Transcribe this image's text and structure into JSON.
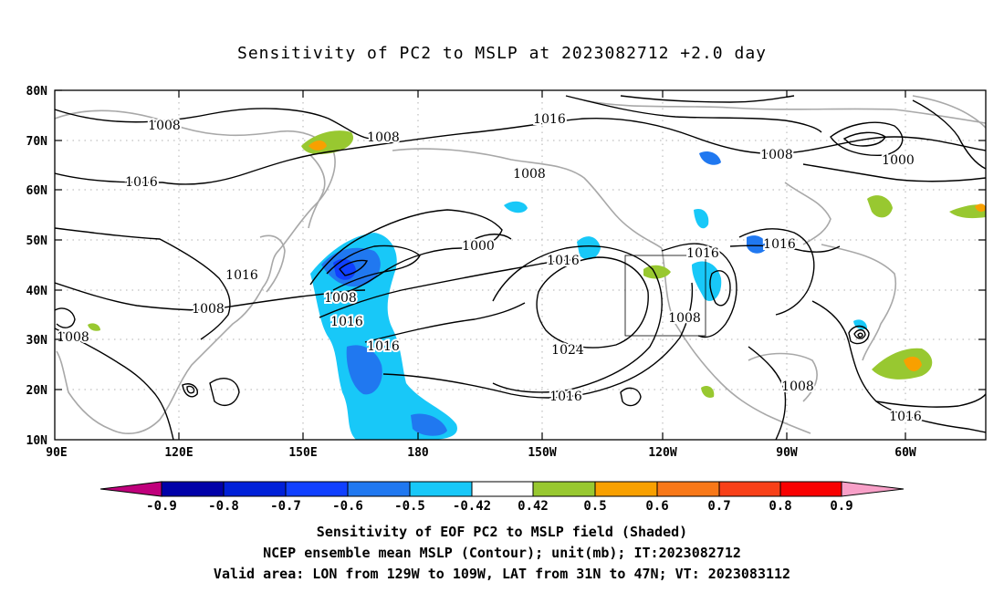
{
  "title": "Sensitivity of PC2 to MSLP at 2023082712 +2.0 day",
  "lat_labels": [
    "80N",
    "70N",
    "60N",
    "50N",
    "40N",
    "30N",
    "20N",
    "10N"
  ],
  "lon_labels": [
    "90E",
    "120E",
    "150E",
    "180",
    "150W",
    "120W",
    "90W",
    "60W"
  ],
  "colorbar": {
    "labels": [
      "-0.9",
      "-0.8",
      "-0.7",
      "-0.6",
      "-0.5",
      "-0.42",
      "0.42",
      "0.5",
      "0.6",
      "0.7",
      "0.8",
      "0.9"
    ],
    "colors": [
      "#c0007c",
      "#0000a8",
      "#0020d8",
      "#1040ff",
      "#2078f0",
      "#30a8f8",
      "#18c8f8",
      "#ffffff",
      "#98c830",
      "#f8a000",
      "#f87818",
      "#f84018",
      "#f80000",
      "#f8a0c8"
    ]
  },
  "contour_labels": [
    {
      "id": "c1",
      "text": "1008"
    },
    {
      "id": "c2",
      "text": "1008"
    },
    {
      "id": "c3",
      "text": "1016"
    },
    {
      "id": "c4",
      "text": "1016"
    },
    {
      "id": "c5",
      "text": "1008"
    },
    {
      "id": "c6",
      "text": "1008"
    },
    {
      "id": "c7",
      "text": "1016"
    },
    {
      "id": "c8",
      "text": "1016"
    },
    {
      "id": "c9",
      "text": "1008"
    },
    {
      "id": "c10",
      "text": "1000"
    },
    {
      "id": "c11",
      "text": "1016"
    },
    {
      "id": "c12",
      "text": "1024"
    },
    {
      "id": "c13",
      "text": "1016"
    },
    {
      "id": "c14",
      "text": "1016"
    },
    {
      "id": "c15",
      "text": "1008"
    },
    {
      "id": "c16",
      "text": "1008"
    },
    {
      "id": "c17",
      "text": "1016"
    },
    {
      "id": "c18",
      "text": "1008"
    },
    {
      "id": "c19",
      "text": "1000"
    },
    {
      "id": "c20",
      "text": "1016"
    },
    {
      "id": "c21",
      "text": "1016"
    },
    {
      "id": "c22",
      "text": "1008"
    }
  ],
  "captions": {
    "line1": "Sensitivity of EOF PC2 to MSLP field (Shaded)",
    "line2": "NCEP ensemble mean MSLP (Contour); unit(mb); IT:2023082712",
    "line3": "Valid area: LON from 129W to 109W, LAT from 31N to 47N; VT: 2023083112"
  }
}
